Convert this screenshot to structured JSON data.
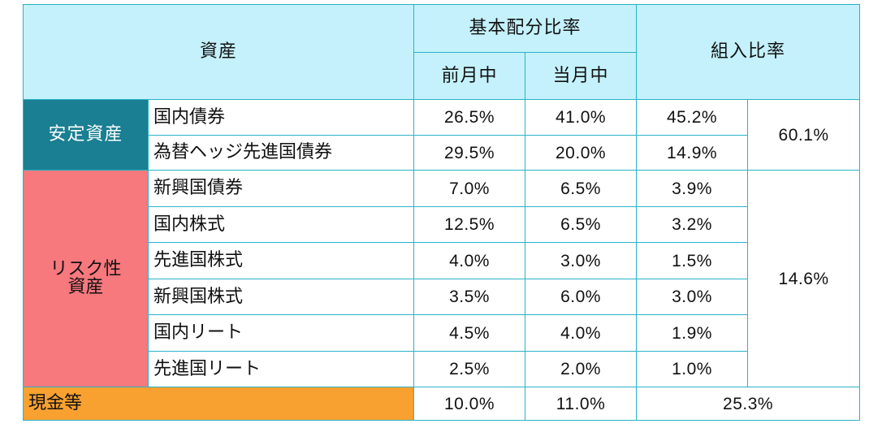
{
  "header": {
    "asset": "資産",
    "basic_ratio": "基本配分比率",
    "prev_month": "前月中",
    "this_month": "当月中",
    "holding_ratio": "組入比率"
  },
  "categories": {
    "stable": "安定資産",
    "risk_line1": "リスク性",
    "risk_line2": "資産",
    "cash": "現金等"
  },
  "rows": [
    {
      "asset": "国内債券",
      "prev": "26.5%",
      "curr": "41.0%",
      "holding": "45.2%"
    },
    {
      "asset": "為替ヘッジ先進国債券",
      "prev": "29.5%",
      "curr": "20.0%",
      "holding": "14.9%"
    },
    {
      "asset": "新興国債券",
      "prev": "7.0%",
      "curr": "6.5%",
      "holding": "3.9%"
    },
    {
      "asset": "国内株式",
      "prev": "12.5%",
      "curr": "6.5%",
      "holding": "3.2%"
    },
    {
      "asset": "先進国株式",
      "prev": "4.0%",
      "curr": "3.0%",
      "holding": "1.5%"
    },
    {
      "asset": "新興国株式",
      "prev": "3.5%",
      "curr": "6.0%",
      "holding": "3.0%"
    },
    {
      "asset": "国内リート",
      "prev": "4.5%",
      "curr": "4.0%",
      "holding": "1.9%"
    },
    {
      "asset": "先進国リート",
      "prev": "2.5%",
      "curr": "2.0%",
      "holding": "1.0%"
    }
  ],
  "subtotals": {
    "stable": "60.1%",
    "risk": "14.6%"
  },
  "cash": {
    "prev": "10.0%",
    "curr": "11.0%",
    "holding": "25.3%"
  }
}
